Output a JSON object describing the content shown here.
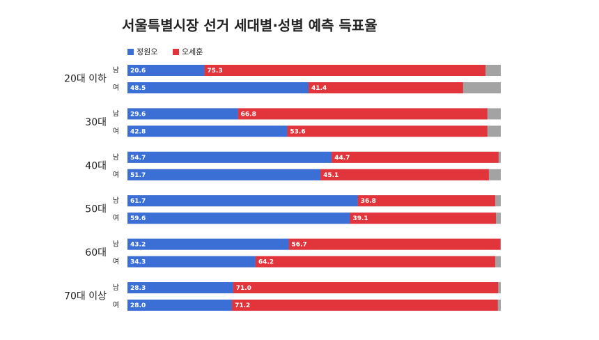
{
  "chart_data": {
    "type": "bar",
    "orientation": "horizontal",
    "stacked": true,
    "title": "서울특별시장 선거 세대별·성별 예측 득표율",
    "groups": [
      "20대 이하",
      "30대",
      "40대",
      "50대",
      "60대",
      "70대 이상"
    ],
    "categories": [
      "남",
      "여",
      "남",
      "여",
      "남",
      "여",
      "남",
      "여",
      "남",
      "여",
      "남",
      "여"
    ],
    "series": [
      {
        "name": "정원오",
        "color": "#3b6fd6",
        "values": [
          20.6,
          48.5,
          29.6,
          42.8,
          54.7,
          51.7,
          61.7,
          59.6,
          43.2,
          34.3,
          28.3,
          28.0
        ],
        "value_labels": [
          "20.6",
          "48.5",
          "29.6",
          "42.8",
          "54.7",
          "51.7",
          "61.7",
          "59.6",
          "43.2",
          "34.3",
          "28.3",
          "28.0"
        ]
      },
      {
        "name": "오세훈",
        "color": "#e2353b",
        "values": [
          75.3,
          41.4,
          66.8,
          53.6,
          44.7,
          45.1,
          36.8,
          39.1,
          56.7,
          64.2,
          71.0,
          71.2
        ],
        "value_labels": [
          "75.3",
          "41.4",
          "66.8",
          "53.6",
          "44.7",
          "45.1",
          "36.8",
          "39.1",
          "56.7",
          "64.2",
          "71.0",
          "71.2"
        ]
      }
    ],
    "xlim": [
      0,
      100
    ],
    "legend": "top-left"
  }
}
